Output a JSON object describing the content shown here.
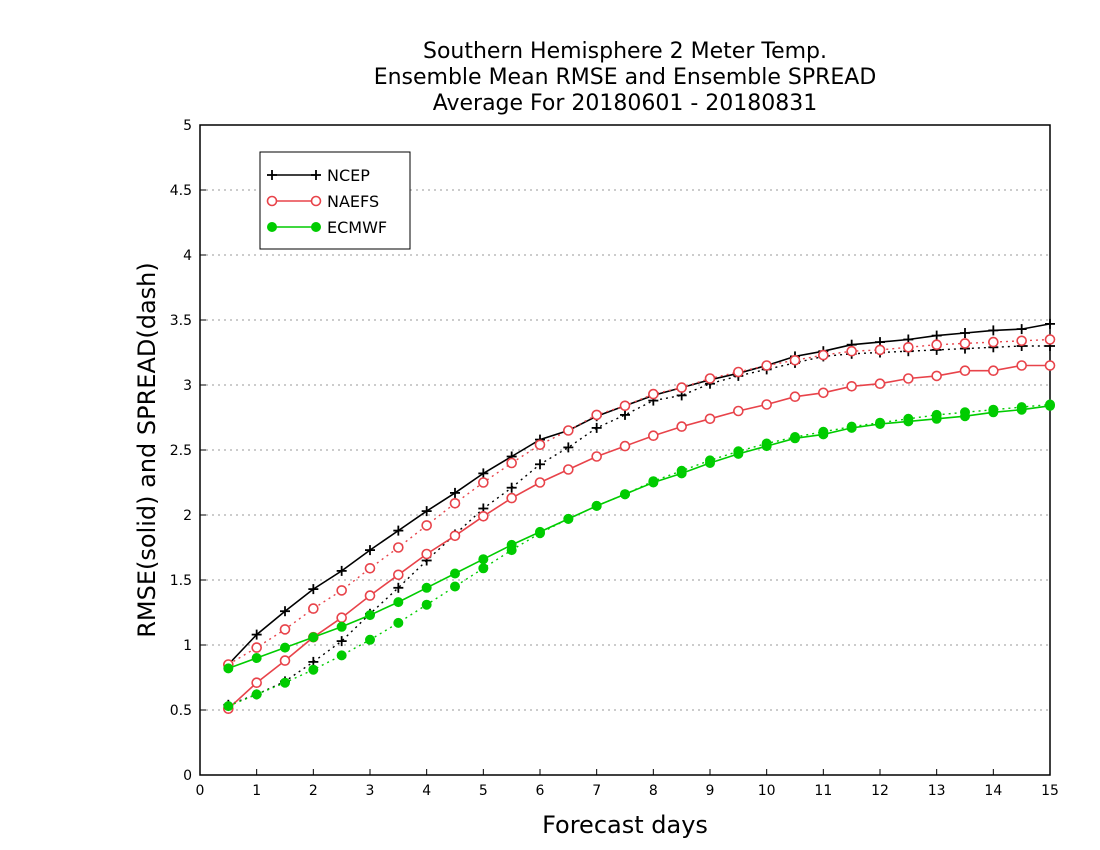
{
  "chart_data": {
    "type": "line",
    "title": [
      "Southern Hemisphere 2 Meter Temp.",
      "Ensemble Mean RMSE and Ensemble SPREAD",
      "Average For 20180601 - 20180831"
    ],
    "xlabel": "Forecast days",
    "ylabel": "RMSE(solid) and SPREAD(dash)",
    "xlim": [
      0,
      15
    ],
    "ylim": [
      0,
      5
    ],
    "xticks": [
      0,
      1,
      2,
      3,
      4,
      5,
      6,
      7,
      8,
      9,
      10,
      11,
      12,
      13,
      14,
      15
    ],
    "yticks": [
      0,
      0.5,
      1,
      1.5,
      2,
      2.5,
      3,
      3.5,
      4,
      4.5,
      5
    ],
    "ytick_labels": [
      "0",
      "0.5",
      "1",
      "1.5",
      "2",
      "2.5",
      "3",
      "3.5",
      "4",
      "4.5",
      "5"
    ],
    "grid": "horizontal dotted",
    "legend_position": "top-left",
    "x": [
      0.5,
      1,
      1.5,
      2,
      2.5,
      3,
      3.5,
      4,
      4.5,
      5,
      5.5,
      6,
      6.5,
      7,
      7.5,
      8,
      8.5,
      9,
      9.5,
      10,
      10.5,
      11,
      11.5,
      12,
      12.5,
      13,
      13.5,
      14,
      14.5,
      15
    ],
    "series": [
      {
        "name": "NCEP",
        "color": "#000000",
        "marker": "plus",
        "rmse": [
          0.85,
          1.08,
          1.26,
          1.43,
          1.57,
          1.73,
          1.88,
          2.03,
          2.17,
          2.32,
          2.45,
          2.58,
          2.65,
          2.76,
          2.84,
          2.92,
          2.98,
          3.04,
          3.09,
          3.15,
          3.22,
          3.26,
          3.31,
          3.33,
          3.35,
          3.38,
          3.4,
          3.42,
          3.43,
          3.47
        ],
        "spread": [
          0.54,
          0.62,
          0.72,
          0.87,
          1.03,
          1.24,
          1.44,
          1.65,
          1.85,
          2.05,
          2.21,
          2.39,
          2.52,
          2.67,
          2.77,
          2.88,
          2.92,
          3.01,
          3.07,
          3.12,
          3.17,
          3.22,
          3.24,
          3.25,
          3.26,
          3.27,
          3.28,
          3.29,
          3.3,
          3.3
        ]
      },
      {
        "name": "NAEFS",
        "color": "#e8434a",
        "marker": "open-circle",
        "rmse": [
          0.51,
          0.71,
          0.88,
          1.06,
          1.21,
          1.38,
          1.54,
          1.7,
          1.84,
          1.99,
          2.13,
          2.25,
          2.35,
          2.45,
          2.53,
          2.61,
          2.68,
          2.74,
          2.8,
          2.85,
          2.91,
          2.94,
          2.99,
          3.01,
          3.05,
          3.07,
          3.11,
          3.11,
          3.15,
          3.15
        ],
        "spread": [
          0.85,
          0.98,
          1.12,
          1.28,
          1.42,
          1.59,
          1.75,
          1.92,
          2.09,
          2.25,
          2.4,
          2.54,
          2.65,
          2.77,
          2.84,
          2.93,
          2.98,
          3.05,
          3.1,
          3.15,
          3.19,
          3.23,
          3.26,
          3.27,
          3.29,
          3.31,
          3.32,
          3.33,
          3.34,
          3.35
        ]
      },
      {
        "name": "ECMWF",
        "color": "#00cc00",
        "marker": "filled-circle",
        "rmse": [
          0.82,
          0.9,
          0.98,
          1.06,
          1.14,
          1.23,
          1.33,
          1.44,
          1.55,
          1.66,
          1.77,
          1.87,
          1.97,
          2.07,
          2.16,
          2.25,
          2.32,
          2.4,
          2.47,
          2.53,
          2.59,
          2.62,
          2.67,
          2.7,
          2.72,
          2.74,
          2.76,
          2.79,
          2.81,
          2.84
        ],
        "spread": [
          0.53,
          0.62,
          0.71,
          0.81,
          0.92,
          1.04,
          1.17,
          1.31,
          1.45,
          1.59,
          1.73,
          1.86,
          1.97,
          2.07,
          2.16,
          2.26,
          2.34,
          2.42,
          2.49,
          2.55,
          2.6,
          2.64,
          2.68,
          2.71,
          2.74,
          2.77,
          2.79,
          2.81,
          2.83,
          2.85
        ]
      }
    ]
  }
}
